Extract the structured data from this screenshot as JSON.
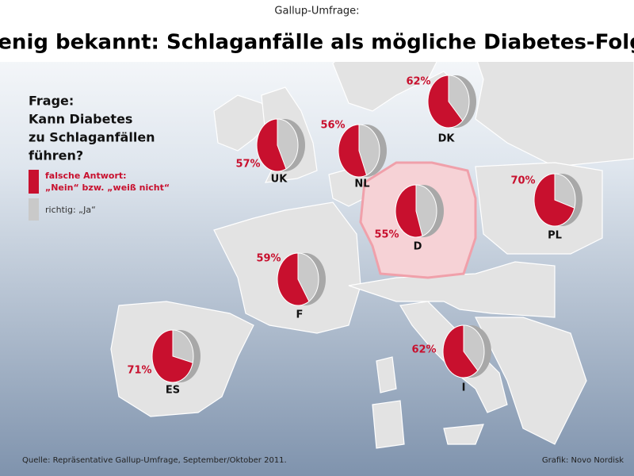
{
  "header": {
    "kicker": "Gallup-Umfrage:",
    "title": "Wenig bekannt: Schlaganfälle als mögliche Diabetes-Folge"
  },
  "question": [
    "Frage:",
    "Kann Diabetes",
    "zu Schlaganfällen",
    "führen?"
  ],
  "legend": {
    "wrong": [
      "falsche Antwort:",
      "„Nein“ bzw. „weiß nicht“"
    ],
    "right": "richtig: „Ja“",
    "wrong_color": "#c8102e",
    "right_color": "#c9c9c9"
  },
  "countries": [
    {
      "code": "DK",
      "value": 62,
      "value_label": "62%"
    },
    {
      "code": "UK",
      "value": 57,
      "value_label": "57%"
    },
    {
      "code": "NL",
      "value": 56,
      "value_label": "56%"
    },
    {
      "code": "D",
      "value": 55,
      "value_label": "55%"
    },
    {
      "code": "PL",
      "value": 70,
      "value_label": "70%"
    },
    {
      "code": "F",
      "value": 59,
      "value_label": "59%"
    },
    {
      "code": "ES",
      "value": 71,
      "value_label": "71%"
    },
    {
      "code": "I",
      "value": 62,
      "value_label": "62%"
    }
  ],
  "footer": {
    "source": "Quelle: Repräsentative Gallup-Umfrage, September/Oktober 2011.",
    "credit": "Grafik: Novo Nordisk"
  }
}
